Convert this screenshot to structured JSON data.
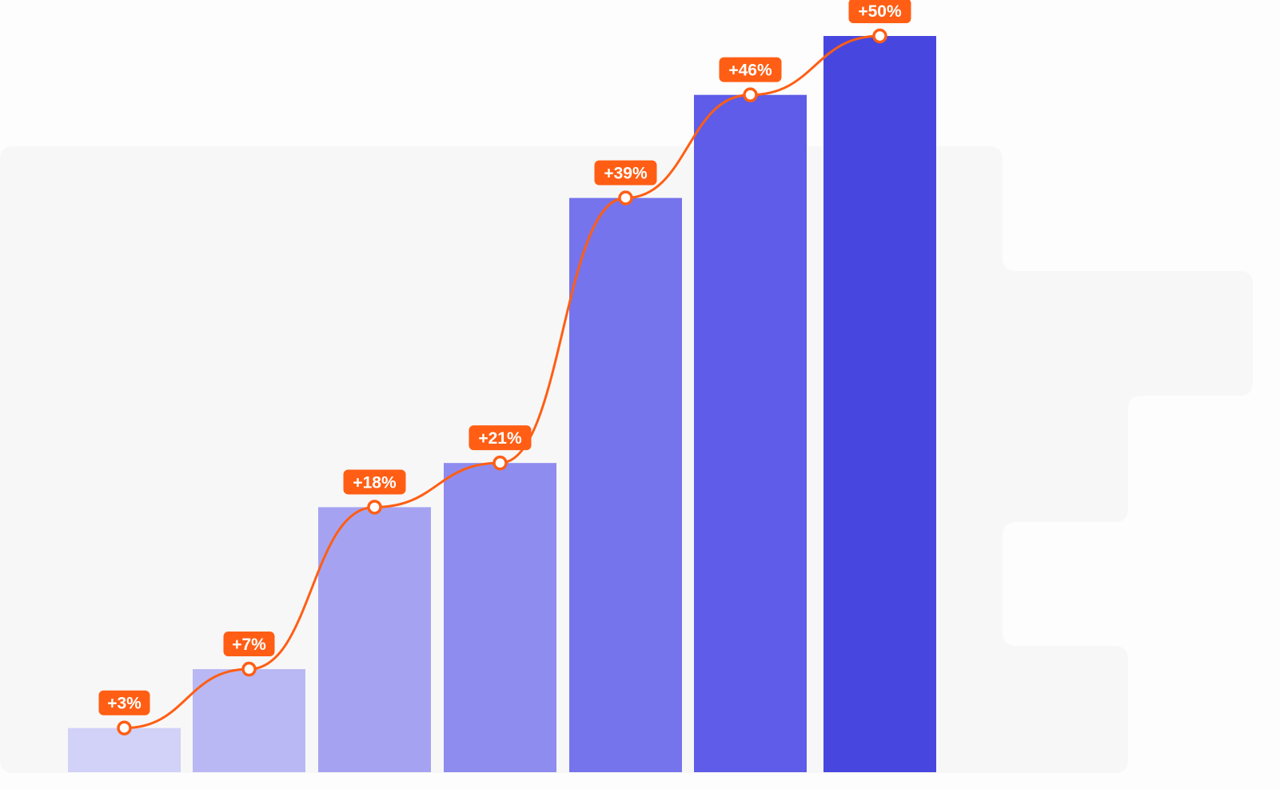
{
  "chart_data": {
    "type": "bar",
    "categories": [
      "",
      "",
      "",
      "",
      "",
      "",
      ""
    ],
    "values": [
      3,
      7,
      18,
      21,
      39,
      46,
      50
    ],
    "labels": [
      "+3%",
      "+7%",
      "+18%",
      "+21%",
      "+39%",
      "+46%",
      "+50%"
    ],
    "title": "",
    "xlabel": "",
    "ylabel": "",
    "ylim": [
      0,
      50
    ],
    "grid": false,
    "legend": "none",
    "overlay_line": true,
    "colors": {
      "bars": [
        "#d2d1f8",
        "#b9b8f4",
        "#a5a3f1",
        "#8e8cef",
        "#7674ec",
        "#5e5ce8",
        "#4747e0"
      ],
      "line": "#ff5e14",
      "label_bg": "#ff5e14",
      "label_text": "#ffffff",
      "backdrop": "#f7f7f7",
      "page": "#fdfdfd"
    }
  }
}
